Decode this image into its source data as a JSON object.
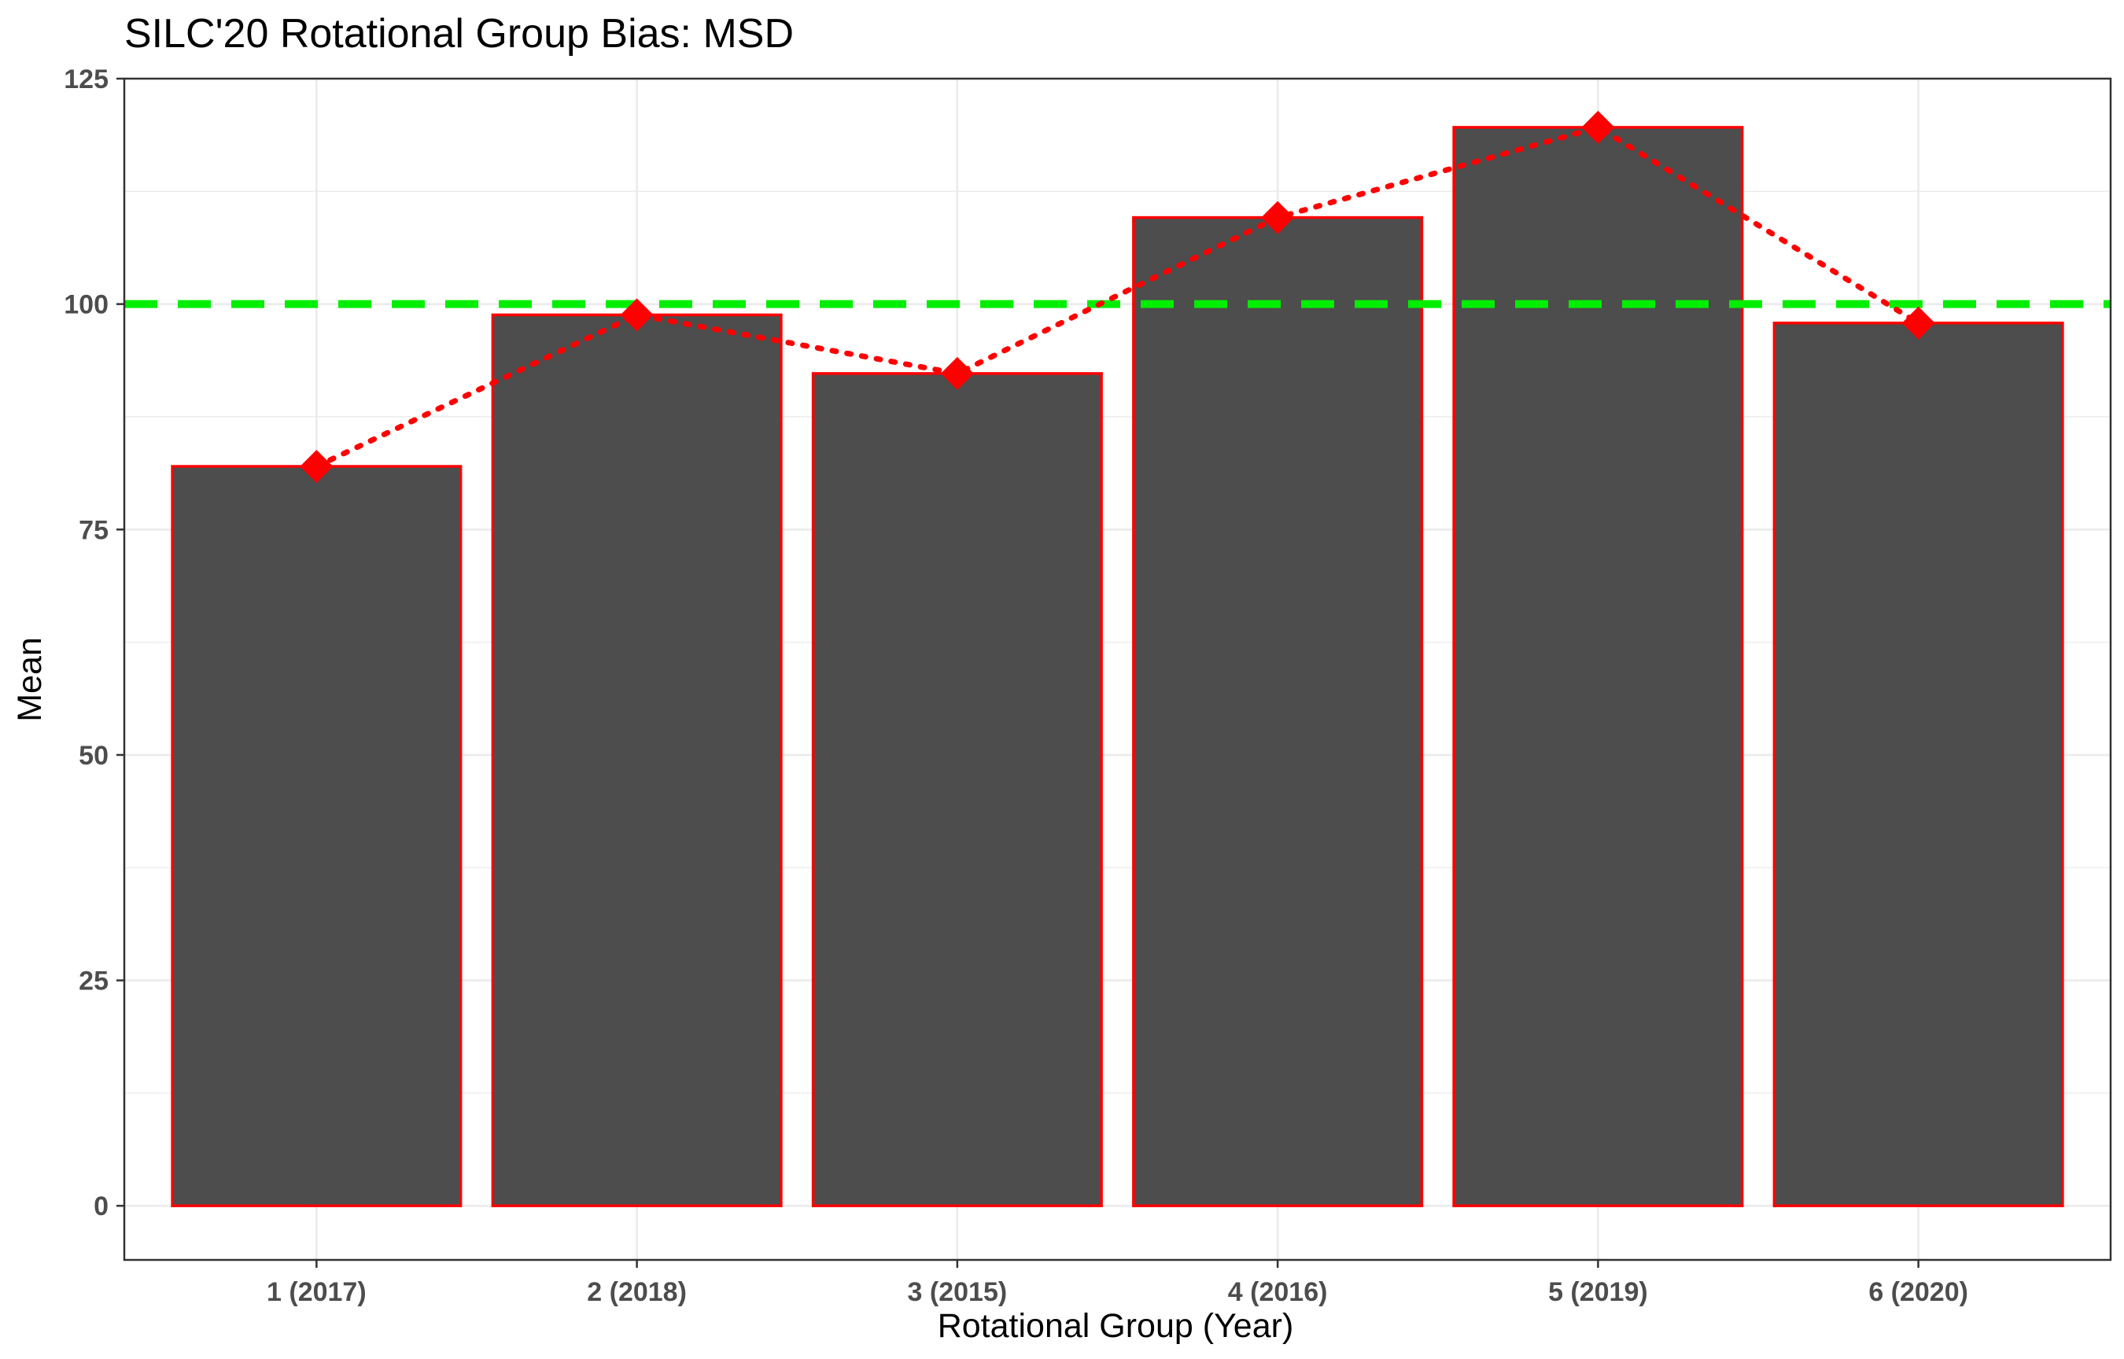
{
  "chart_data": {
    "type": "bar",
    "title": "SILC'20 Rotational Group Bias: MSD",
    "xlabel": "Rotational Group (Year)",
    "ylabel": "Mean",
    "categories": [
      "1 (2017)",
      "2 (2018)",
      "3 (2015)",
      "4 (2016)",
      "5 (2019)",
      "6 (2020)"
    ],
    "values": [
      82,
      98.8,
      92.3,
      109.6,
      119.6,
      97.9
    ],
    "markers": {
      "shape": "diamond",
      "color": "#ff0000",
      "line_style": "dotted",
      "line_color": "#ff0000"
    },
    "reference_line": {
      "y": 100,
      "style": "dashed",
      "color": "#00ee00"
    },
    "ylim": [
      -6,
      125
    ],
    "yticks": [
      0,
      25,
      50,
      75,
      100,
      125
    ],
    "grid": true,
    "legend": "none",
    "colors": {
      "bar_fill": "#4d4d4d",
      "bar_outline": "#ff0000",
      "grid": "#ebebeb",
      "panel_border": "#333333",
      "tick_text": "#4d4d4d"
    }
  }
}
